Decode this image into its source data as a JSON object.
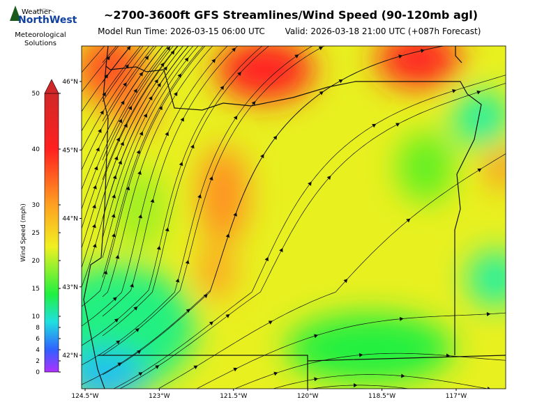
{
  "header": {
    "title": "~2700-3600ft GFS Streamlines/Wind Speed (90-120mb agl)",
    "model_run": "Model Run Time: 2026-03-15 06:00 UTC",
    "valid": "Valid: 2026-03-18 21:00 UTC  (+087h Forecast)"
  },
  "logo": {
    "top": "Weather",
    "name": "NorthWest",
    "line1": "Meteorological",
    "line2": "Solutions"
  },
  "colorbar": {
    "label": "Wind Speed (mph)",
    "ticks": [
      0,
      2,
      4,
      6,
      8,
      10,
      15,
      20,
      25,
      30,
      40,
      50
    ]
  },
  "map": {
    "lat_ticks": [
      {
        "value": 46,
        "label": "46°N"
      },
      {
        "value": 45,
        "label": "45°N"
      },
      {
        "value": 44,
        "label": "44°N"
      },
      {
        "value": 43,
        "label": "43°N"
      },
      {
        "value": 42,
        "label": "42°N"
      }
    ],
    "lon_ticks": [
      {
        "value": -124.5,
        "label": "124.5°W"
      },
      {
        "value": -123,
        "label": "123°W"
      },
      {
        "value": -121.5,
        "label": "121.5°W"
      },
      {
        "value": -120,
        "label": "120°W"
      },
      {
        "value": -118.5,
        "label": "118.5°W"
      },
      {
        "value": -117,
        "label": "117°W"
      }
    ]
  }
}
